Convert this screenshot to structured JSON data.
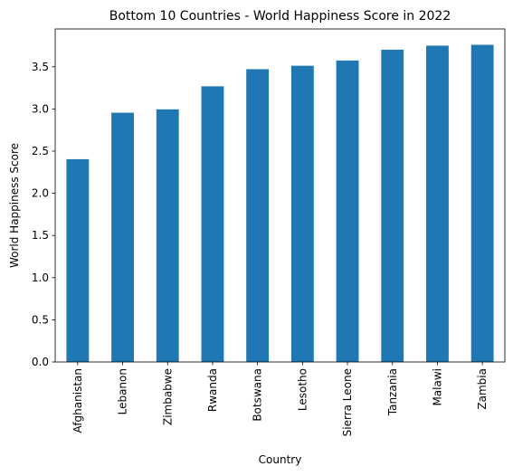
{
  "chart_data": {
    "type": "bar",
    "title": "Bottom 10 Countries - World Happiness Score in 2022",
    "xlabel": "Country",
    "ylabel": "World Happiness Score",
    "categories": [
      "Afghanistan",
      "Lebanon",
      "Zimbabwe",
      "Rwanda",
      "Botswana",
      "Lesotho",
      "Sierra Leone",
      "Tanzania",
      "Malawi",
      "Zambia"
    ],
    "values": [
      2.404,
      2.955,
      2.995,
      3.268,
      3.471,
      3.512,
      3.574,
      3.702,
      3.75,
      3.76
    ],
    "ylim": [
      0,
      3.948
    ],
    "yticks": [
      "0.0",
      "0.5",
      "1.0",
      "1.5",
      "2.0",
      "2.5",
      "3.0",
      "3.5"
    ],
    "grid": false,
    "legend": "none",
    "bar_color": "#1f77b4"
  }
}
